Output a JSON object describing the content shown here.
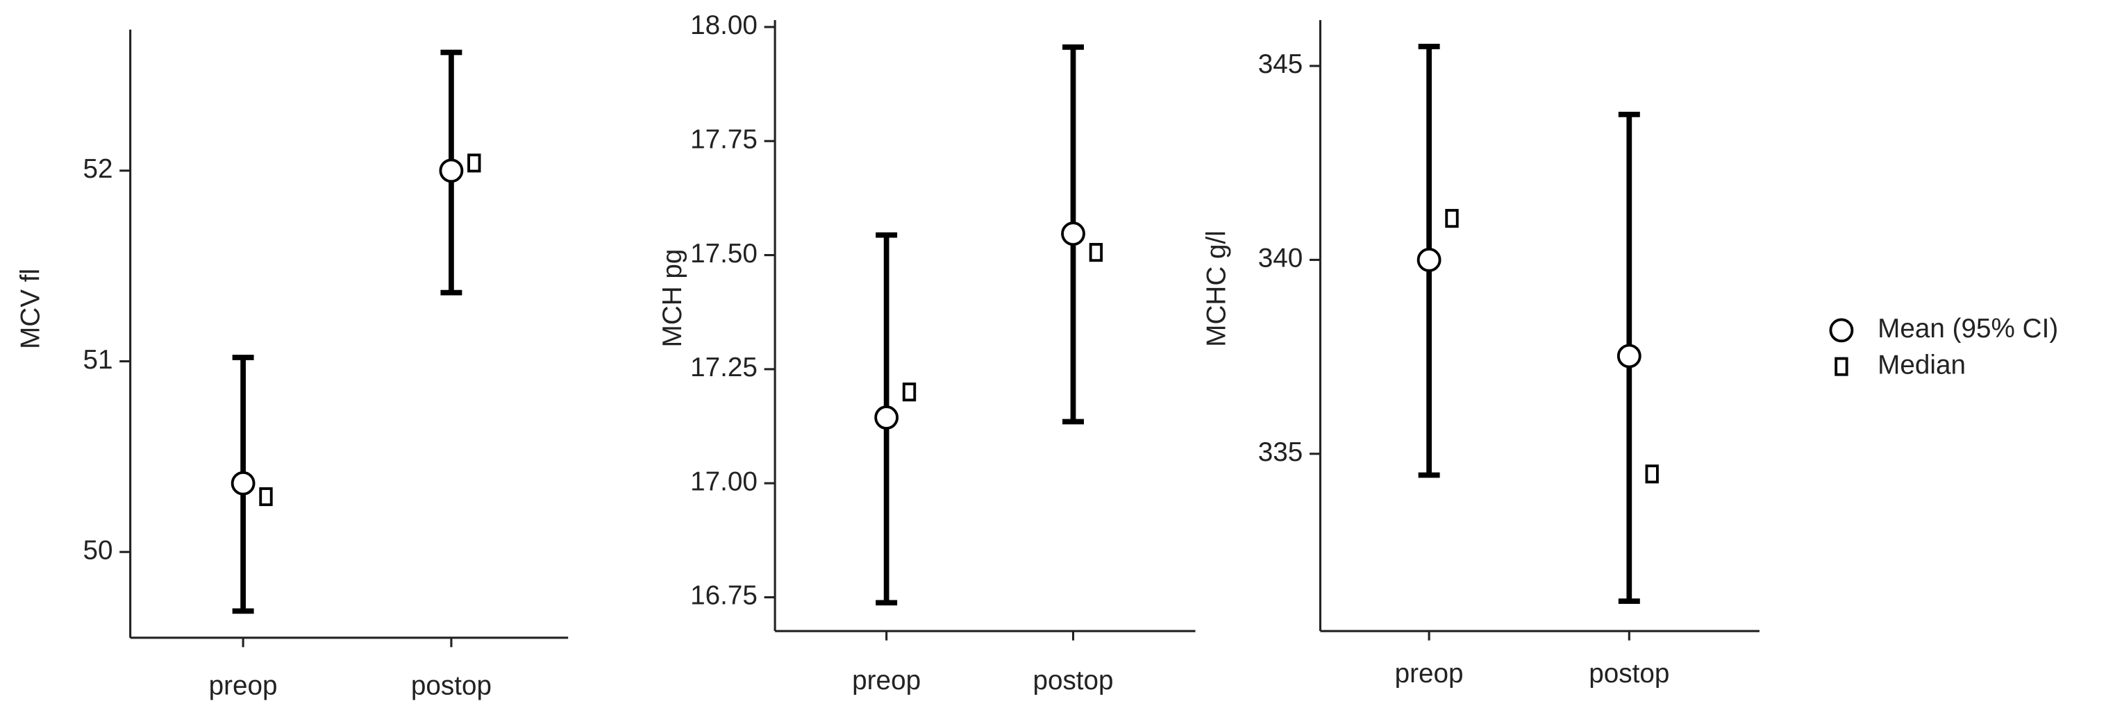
{
  "chart_data": [
    {
      "type": "errorbar",
      "ylabel": "MCV fl",
      "categories": [
        "preop",
        "postop"
      ],
      "ylim": [
        49.55,
        52.74
      ],
      "yticks": [
        50,
        51,
        52
      ],
      "series": [
        {
          "name": "Mean (95% CI)",
          "marker": "circle",
          "color": "#000000",
          "values": [
            50.36,
            52.0
          ],
          "lower": [
            49.69,
            51.36
          ],
          "upper": [
            51.02,
            52.62
          ]
        },
        {
          "name": "Median",
          "marker": "square",
          "color": "#000000",
          "values": [
            50.29,
            52.04
          ]
        }
      ]
    },
    {
      "type": "errorbar",
      "ylabel": "MCH pg",
      "categories": [
        "preop",
        "postop"
      ],
      "ylim": [
        16.676,
        18.015
      ],
      "yticks": [
        {
          "value": 16.75,
          "label": "16.75"
        },
        {
          "value": 17.0,
          "label": "17.00"
        },
        {
          "value": 17.25,
          "label": "17.25"
        },
        {
          "value": 17.5,
          "label": "17.50"
        },
        {
          "value": 17.75,
          "label": "17.75"
        },
        {
          "value": 18.0,
          "label": "18.00"
        }
      ],
      "series": [
        {
          "name": "Mean (95% CI)",
          "marker": "circle",
          "color": "#000000",
          "values": [
            17.144,
            17.547
          ],
          "lower": [
            16.738,
            17.135
          ],
          "upper": [
            17.544,
            17.956
          ]
        },
        {
          "name": "Median",
          "marker": "square",
          "color": "#000000",
          "values": [
            17.2,
            17.506
          ]
        }
      ]
    },
    {
      "type": "errorbar",
      "ylabel": "MCHC g/l",
      "categories": [
        "preop",
        "postop"
      ],
      "ylim": [
        330.43,
        346.18
      ],
      "yticks": [
        335,
        340,
        345
      ],
      "series": [
        {
          "name": "Mean (95% CI)",
          "marker": "circle",
          "color": "#000000",
          "values": [
            340.0,
            337.52
          ],
          "lower": [
            334.45,
            331.2
          ],
          "upper": [
            345.5,
            343.75
          ]
        },
        {
          "name": "Median",
          "marker": "square",
          "color": "#000000",
          "values": [
            341.07,
            334.48
          ]
        }
      ]
    }
  ]
}
